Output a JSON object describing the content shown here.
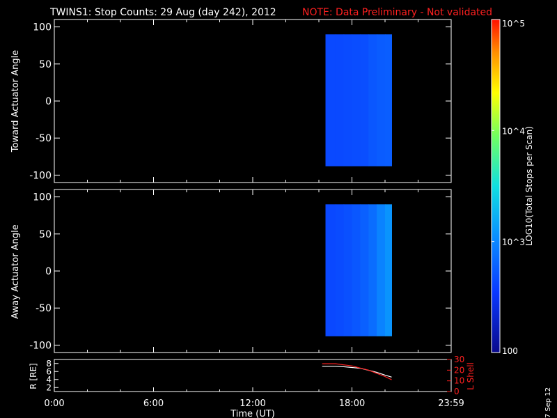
{
  "header": {
    "title": "TWINS1: Stop Counts: 29 Aug (day 242), 2012",
    "note": "NOTE: Data Preliminary - Not validated",
    "note_color": "#ff2020"
  },
  "side_label": "7 Sep 12",
  "colorbar": {
    "label": "LOG10(Total Stops per Scan)",
    "ticks": [
      "10^5",
      "10^4",
      "10^3",
      "100"
    ],
    "scale": "log",
    "range": [
      100,
      100000
    ]
  },
  "chart_data": [
    {
      "type": "heatmap",
      "name": "toward",
      "ylabel": "Toward Actuator Angle",
      "ylim": [
        -110,
        110
      ],
      "yticks": [
        "100",
        "50",
        "0",
        "-50",
        "-100"
      ],
      "x_data_range_hours": [
        16.4,
        20.4
      ],
      "y_data_range": [
        -88,
        90
      ],
      "intensity_log10": [
        {
          "hour": 16.4,
          "v": 2.62
        },
        {
          "hour": 17.0,
          "v": 2.66
        },
        {
          "hour": 17.5,
          "v": 2.62
        },
        {
          "hour": 18.0,
          "v": 2.68
        },
        {
          "hour": 18.5,
          "v": 2.64
        },
        {
          "hour": 19.0,
          "v": 2.7
        },
        {
          "hour": 19.5,
          "v": 2.74
        },
        {
          "hour": 20.0,
          "v": 2.76
        },
        {
          "hour": 20.4,
          "v": 2.76
        }
      ]
    },
    {
      "type": "heatmap",
      "name": "away",
      "ylabel": "Away Actuator Angle",
      "ylim": [
        -110,
        110
      ],
      "yticks": [
        "100",
        "50",
        "0",
        "-50",
        "-100"
      ],
      "x_data_range_hours": [
        16.4,
        20.4
      ],
      "y_data_range": [
        -88,
        90
      ],
      "intensity_log10": [
        {
          "hour": 16.4,
          "v": 2.62
        },
        {
          "hour": 17.0,
          "v": 2.64
        },
        {
          "hour": 17.5,
          "v": 2.66
        },
        {
          "hour": 18.0,
          "v": 2.7
        },
        {
          "hour": 18.5,
          "v": 2.74
        },
        {
          "hour": 19.0,
          "v": 2.8
        },
        {
          "hour": 19.5,
          "v": 2.9
        },
        {
          "hour": 20.0,
          "v": 3.05
        },
        {
          "hour": 20.4,
          "v": 3.1
        }
      ]
    },
    {
      "type": "line",
      "name": "ephemeris",
      "ylabel_left": "R [RE]",
      "ylabel_right": "L Shell",
      "ylim_left": [
        1,
        9
      ],
      "ylim_right": [
        0,
        30
      ],
      "yticks_left": [
        "8",
        "6",
        "4",
        "2"
      ],
      "yticks_right": [
        "30",
        "20",
        "10",
        "0"
      ],
      "xlabel": "Time (UT)",
      "xticks": [
        "0:00",
        "6:00",
        "12:00",
        "18:00",
        "23:59"
      ],
      "series": [
        {
          "axis": "left",
          "color": "#ffffff",
          "x": [
            16.2,
            17.0,
            17.5,
            18.0,
            18.5,
            19.0,
            19.5,
            20.0,
            20.4
          ],
          "y": [
            7.3,
            7.3,
            7.2,
            7.0,
            6.8,
            6.3,
            5.8,
            5.1,
            4.6
          ]
        },
        {
          "axis": "right",
          "color": "#ff2020",
          "x": [
            16.2,
            17.0,
            17.5,
            18.0,
            18.5,
            19.0,
            19.5,
            20.0,
            20.4
          ],
          "y": [
            26,
            26,
            25,
            24,
            22,
            20,
            17,
            14,
            11
          ]
        }
      ]
    }
  ]
}
